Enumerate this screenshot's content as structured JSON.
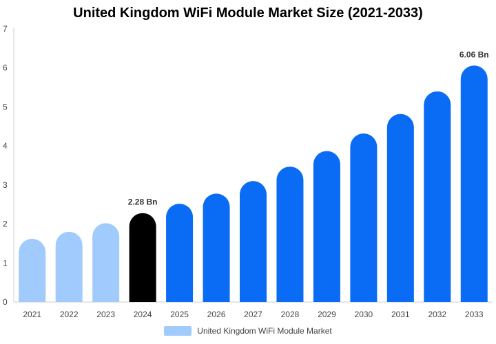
{
  "chart_data": {
    "type": "bar",
    "title": "United Kingdom WiFi Module Market Size (2021-2033)",
    "categories": [
      "2021",
      "2022",
      "2023",
      "2024",
      "2025",
      "2026",
      "2027",
      "2028",
      "2029",
      "2030",
      "2031",
      "2032",
      "2033"
    ],
    "series": [
      {
        "name": "United Kingdom WiFi Module Market",
        "values": [
          1.62,
          1.8,
          2.02,
          2.28,
          2.52,
          2.78,
          3.1,
          3.47,
          3.87,
          4.32,
          4.82,
          5.4,
          6.06
        ]
      }
    ],
    "data_labels": [
      {
        "category": "2024",
        "text": "2.28 Bn"
      },
      {
        "category": "2033",
        "text": "6.06 Bn"
      }
    ],
    "xlabel": "",
    "ylabel": "",
    "ylim": [
      0,
      7
    ],
    "yticks": [
      0,
      1,
      2,
      3,
      4,
      5,
      6,
      7
    ],
    "grid": false,
    "legend_position": "bottom",
    "colors": {
      "historical": "#a0cbfc",
      "current": "#000000",
      "forecast": "#0a6cf5",
      "axis": "#cccccc",
      "legend_swatch": "#a0cbfc"
    },
    "category_color_keys": [
      "historical",
      "historical",
      "historical",
      "current",
      "forecast",
      "forecast",
      "forecast",
      "forecast",
      "forecast",
      "forecast",
      "forecast",
      "forecast",
      "forecast"
    ]
  }
}
